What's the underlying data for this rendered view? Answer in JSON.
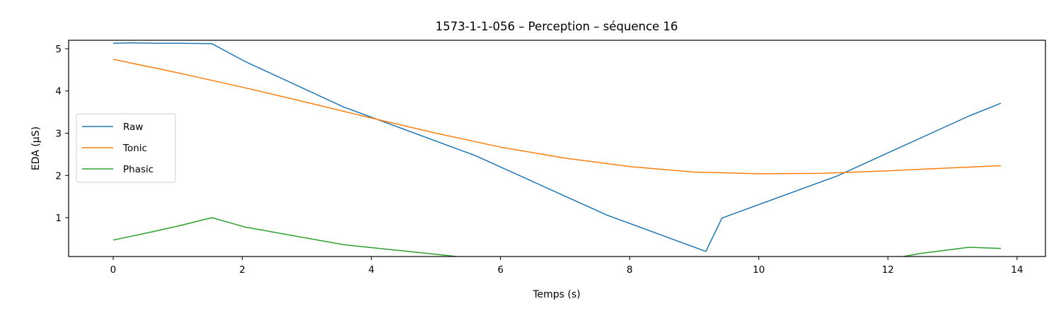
{
  "chart_data": {
    "type": "line",
    "title": "1573-1-1-056 – Perception – séquence 16",
    "xlabel": "Temps (s)",
    "ylabel": "EDA (µS)",
    "xlim": [
      -0.69,
      14.44
    ],
    "ylim": [
      0.08,
      5.2
    ],
    "xticks": [
      0,
      2,
      4,
      6,
      8,
      10,
      12,
      14
    ],
    "yticks": [
      1,
      2,
      3,
      4,
      5
    ],
    "grid": false,
    "legend_position": "center-left",
    "series": [
      {
        "name": "Raw",
        "color": "#1f77b4",
        "x": [
          0,
          0.25,
          0.75,
          1,
          1.53,
          2.04,
          3.57,
          5.61,
          7.65,
          9.18,
          9.43,
          11.22,
          13.26,
          13.75
        ],
        "y": [
          5.13,
          5.14,
          5.13,
          5.13,
          5.12,
          4.7,
          3.62,
          2.47,
          1.06,
          0.2,
          0.99,
          1.99,
          3.41,
          3.71
        ]
      },
      {
        "name": "Tonic",
        "color": "#ff7f0e",
        "x": [
          0,
          1,
          2,
          3,
          4,
          5,
          6,
          7,
          8,
          9,
          10,
          11,
          12,
          13,
          13.75
        ],
        "y": [
          4.75,
          4.43,
          4.09,
          3.73,
          3.36,
          3.0,
          2.67,
          2.41,
          2.21,
          2.08,
          2.04,
          2.05,
          2.11,
          2.18,
          2.23
        ]
      },
      {
        "name": "Phasic",
        "color": "#2ca02c",
        "x": [
          0,
          0.5,
          1,
          1.53,
          2.04,
          3.57,
          5.2,
          5.6,
          12.05,
          12.5,
          13.26,
          13.75
        ],
        "y": [
          0.47,
          0.63,
          0.8,
          1.0,
          0.78,
          0.36,
          0.1,
          0.03,
          0.03,
          0.15,
          0.3,
          0.27
        ]
      }
    ]
  }
}
